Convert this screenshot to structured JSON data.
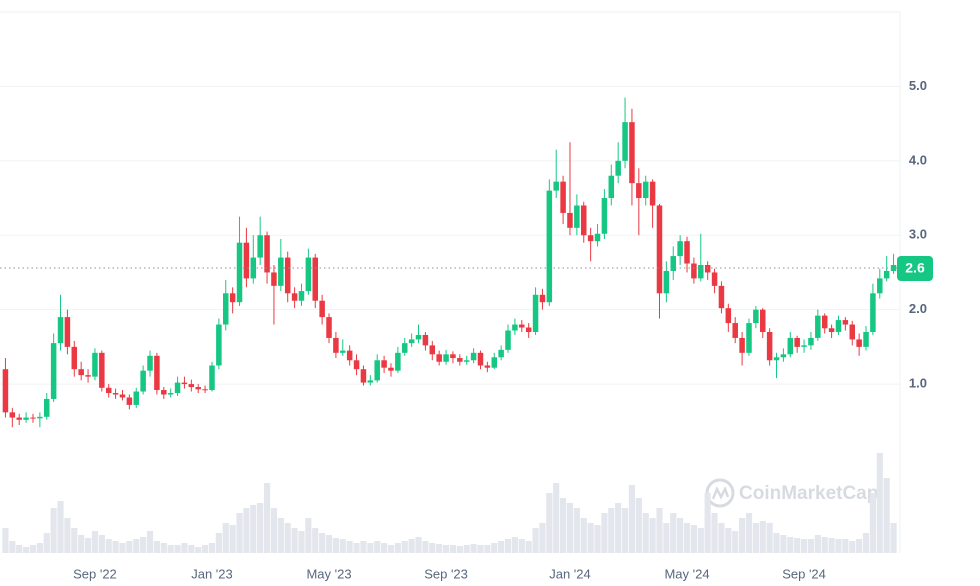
{
  "chart_data": {
    "type": "candlestick",
    "watermark": "CoinMarketCap",
    "categories": [
      null,
      null,
      null,
      null,
      null,
      null,
      null,
      null,
      null,
      null,
      null,
      null,
      null,
      "Sep '22",
      null,
      null,
      null,
      null,
      null,
      null,
      null,
      null,
      null,
      null,
      null,
      null,
      null,
      null,
      null,
      null,
      "Jan '23",
      null,
      null,
      null,
      null,
      null,
      null,
      null,
      null,
      null,
      null,
      null,
      null,
      null,
      null,
      null,
      null,
      "May '23",
      null,
      null,
      null,
      null,
      null,
      null,
      null,
      null,
      null,
      null,
      null,
      null,
      null,
      null,
      null,
      null,
      "Sep '23",
      null,
      null,
      null,
      null,
      null,
      null,
      null,
      null,
      null,
      null,
      null,
      null,
      null,
      null,
      null,
      null,
      null,
      "Jan '24",
      null,
      null,
      null,
      null,
      null,
      null,
      null,
      null,
      null,
      null,
      null,
      null,
      null,
      null,
      null,
      null,
      "May '24",
      null,
      null,
      null,
      null,
      null,
      null,
      null,
      null,
      null,
      null,
      null,
      null,
      null,
      null,
      null,
      null,
      "Sep '24",
      null,
      null,
      null,
      null,
      null,
      null,
      null,
      null,
      null,
      null,
      null,
      null,
      null
    ],
    "open": [
      1.2,
      0.62,
      0.55,
      0.52,
      0.55,
      0.54,
      0.56,
      0.8,
      1.55,
      1.9,
      1.5,
      1.2,
      1.12,
      1.1,
      1.42,
      0.95,
      0.88,
      0.86,
      0.82,
      0.72,
      0.9,
      1.18,
      1.38,
      0.92,
      0.86,
      0.88,
      1.02,
      1.0,
      0.96,
      0.93,
      0.92,
      1.25,
      1.8,
      2.22,
      2.1,
      2.9,
      2.42,
      2.7,
      3.0,
      2.5,
      2.32,
      2.7,
      2.22,
      2.12,
      2.25,
      2.7,
      2.12,
      1.9,
      1.62,
      1.42,
      1.45,
      1.32,
      1.2,
      1.02,
      1.05,
      1.32,
      1.22,
      1.18,
      1.42,
      1.55,
      1.6,
      1.66,
      1.52,
      1.4,
      1.3,
      1.4,
      1.35,
      1.3,
      1.32,
      1.42,
      1.25,
      1.22,
      1.36,
      1.46,
      1.72,
      1.8,
      1.76,
      1.7,
      2.2,
      2.1,
      3.6,
      3.72,
      3.3,
      3.1,
      3.4,
      3.0,
      2.92,
      3.02,
      3.5,
      3.8,
      4.0,
      4.52,
      3.7,
      3.5,
      3.72,
      3.4,
      2.22,
      2.52,
      2.72,
      2.92,
      2.62,
      2.42,
      2.6,
      2.5,
      2.32,
      2.02,
      1.82,
      1.62,
      1.42,
      1.82,
      2.0,
      1.7,
      1.32,
      1.36,
      1.4,
      1.62,
      1.5,
      1.52,
      1.62,
      1.92,
      1.75,
      1.7,
      1.86,
      1.8,
      1.6,
      1.5,
      1.7,
      2.22,
      2.42,
      2.52
    ],
    "high": [
      1.35,
      0.68,
      0.6,
      0.62,
      0.6,
      0.62,
      0.88,
      1.68,
      2.2,
      2.0,
      1.58,
      1.3,
      1.2,
      1.48,
      1.45,
      1.0,
      0.94,
      0.92,
      0.86,
      0.95,
      1.25,
      1.45,
      1.42,
      0.96,
      0.94,
      1.1,
      1.1,
      1.06,
      1.0,
      0.98,
      1.3,
      1.88,
      2.4,
      2.3,
      3.25,
      3.1,
      3.0,
      3.25,
      3.05,
      2.6,
      2.95,
      2.78,
      2.3,
      2.35,
      2.82,
      2.75,
      2.2,
      1.95,
      1.7,
      1.6,
      1.52,
      1.4,
      1.25,
      1.12,
      1.4,
      1.38,
      1.28,
      1.5,
      1.62,
      1.68,
      1.8,
      1.7,
      1.58,
      1.45,
      1.46,
      1.44,
      1.4,
      1.38,
      1.48,
      1.45,
      1.3,
      1.42,
      1.52,
      1.8,
      1.88,
      1.86,
      1.82,
      2.3,
      2.28,
      3.75,
      4.15,
      3.8,
      4.25,
      3.55,
      3.45,
      3.1,
      3.15,
      3.62,
      3.95,
      4.25,
      4.85,
      4.7,
      3.9,
      3.8,
      3.75,
      3.42,
      2.65,
      2.85,
      3.0,
      2.98,
      2.7,
      3.02,
      2.65,
      2.55,
      2.38,
      2.08,
      1.9,
      1.7,
      1.88,
      2.05,
      2.02,
      1.75,
      1.42,
      1.48,
      1.7,
      1.65,
      1.6,
      1.7,
      2.0,
      1.95,
      1.8,
      1.92,
      1.9,
      1.85,
      1.68,
      1.78,
      2.35,
      2.55,
      2.72,
      2.75
    ],
    "low": [
      0.55,
      0.42,
      0.45,
      0.48,
      0.48,
      0.42,
      0.52,
      0.76,
      1.45,
      1.4,
      1.1,
      1.05,
      1.02,
      1.05,
      0.9,
      0.82,
      0.8,
      0.78,
      0.66,
      0.68,
      0.86,
      1.1,
      0.86,
      0.8,
      0.82,
      0.84,
      0.94,
      0.9,
      0.88,
      0.88,
      0.9,
      1.2,
      1.72,
      1.95,
      2.05,
      2.3,
      2.35,
      2.6,
      2.35,
      1.8,
      2.25,
      2.1,
      2.02,
      2.05,
      2.2,
      2.02,
      1.8,
      1.55,
      1.35,
      1.38,
      1.25,
      1.12,
      0.98,
      0.98,
      1.02,
      1.15,
      1.1,
      1.15,
      1.38,
      1.5,
      1.55,
      1.45,
      1.32,
      1.25,
      1.26,
      1.28,
      1.25,
      1.26,
      1.28,
      1.2,
      1.16,
      1.2,
      1.32,
      1.42,
      1.66,
      1.7,
      1.62,
      1.66,
      2.0,
      2.05,
      3.5,
      3.15,
      3.0,
      3.0,
      2.9,
      2.65,
      2.85,
      2.95,
      3.4,
      3.7,
      3.9,
      3.4,
      3.0,
      3.4,
      3.1,
      1.88,
      2.1,
      2.4,
      2.6,
      2.5,
      2.35,
      2.38,
      2.4,
      2.22,
      1.95,
      1.7,
      1.55,
      1.25,
      1.38,
      1.75,
      1.62,
      1.25,
      1.08,
      1.3,
      1.36,
      1.42,
      1.42,
      1.46,
      1.58,
      1.68,
      1.62,
      1.66,
      1.72,
      1.52,
      1.38,
      1.45,
      1.66,
      2.15,
      2.38,
      2.48
    ],
    "close": [
      0.62,
      0.55,
      0.52,
      0.55,
      0.54,
      0.56,
      0.8,
      1.55,
      1.9,
      1.5,
      1.2,
      1.12,
      1.1,
      1.42,
      0.95,
      0.88,
      0.86,
      0.82,
      0.72,
      0.9,
      1.18,
      1.38,
      0.92,
      0.86,
      0.88,
      1.02,
      1.0,
      0.96,
      0.93,
      0.92,
      1.25,
      1.8,
      2.22,
      2.1,
      2.9,
      2.42,
      2.7,
      3.0,
      2.5,
      2.32,
      2.7,
      2.22,
      2.12,
      2.25,
      2.7,
      2.12,
      1.9,
      1.62,
      1.42,
      1.45,
      1.32,
      1.2,
      1.02,
      1.05,
      1.32,
      1.22,
      1.18,
      1.42,
      1.55,
      1.6,
      1.66,
      1.52,
      1.4,
      1.3,
      1.4,
      1.35,
      1.3,
      1.32,
      1.42,
      1.25,
      1.22,
      1.36,
      1.46,
      1.72,
      1.8,
      1.76,
      1.7,
      2.2,
      2.1,
      3.6,
      3.72,
      3.3,
      3.1,
      3.4,
      3.0,
      2.92,
      3.02,
      3.5,
      3.8,
      4.0,
      4.52,
      3.7,
      3.5,
      3.72,
      3.4,
      2.22,
      2.52,
      2.72,
      2.92,
      2.62,
      2.42,
      2.6,
      2.5,
      2.32,
      2.02,
      1.82,
      1.62,
      1.42,
      1.82,
      2.0,
      1.7,
      1.32,
      1.36,
      1.4,
      1.62,
      1.5,
      1.52,
      1.62,
      1.92,
      1.75,
      1.7,
      1.86,
      1.8,
      1.6,
      1.5,
      1.7,
      2.22,
      2.42,
      2.52,
      2.6
    ],
    "volume": [
      25,
      12,
      8,
      6,
      8,
      10,
      20,
      45,
      52,
      35,
      25,
      18,
      15,
      22,
      18,
      14,
      12,
      10,
      12,
      14,
      16,
      22,
      12,
      10,
      8,
      8,
      10,
      8,
      6,
      8,
      10,
      20,
      30,
      28,
      40,
      45,
      48,
      50,
      70,
      45,
      35,
      30,
      25,
      22,
      35,
      25,
      20,
      18,
      15,
      14,
      12,
      10,
      12,
      10,
      12,
      10,
      8,
      10,
      12,
      14,
      16,
      12,
      10,
      9,
      8,
      8,
      7,
      8,
      9,
      8,
      8,
      10,
      12,
      14,
      16,
      14,
      12,
      25,
      30,
      60,
      70,
      55,
      50,
      45,
      35,
      30,
      28,
      40,
      45,
      50,
      45,
      68,
      55,
      40,
      35,
      45,
      30,
      40,
      35,
      30,
      28,
      25,
      60,
      40,
      30,
      25,
      22,
      35,
      40,
      30,
      32,
      30,
      20,
      18,
      16,
      15,
      14,
      14,
      18,
      16,
      15,
      14,
      14,
      12,
      14,
      20,
      60,
      100,
      75,
      30
    ],
    "up_color": "#16c784",
    "down_color": "#ea3943",
    "volume_color": "#e3e7ed",
    "ylim": [
      -1.27,
      6.0
    ],
    "yticks": [
      {
        "value": 1,
        "label": "1.0"
      },
      {
        "value": 2,
        "label": "2.0"
      },
      {
        "value": 3,
        "label": "3.0"
      },
      {
        "value": 4,
        "label": "4.0"
      },
      {
        "value": 5,
        "label": "5.0"
      }
    ],
    "vlim": [
      0,
      100
    ],
    "last_price": {
      "value": 2.56,
      "label": "2.6"
    },
    "grid": true
  }
}
